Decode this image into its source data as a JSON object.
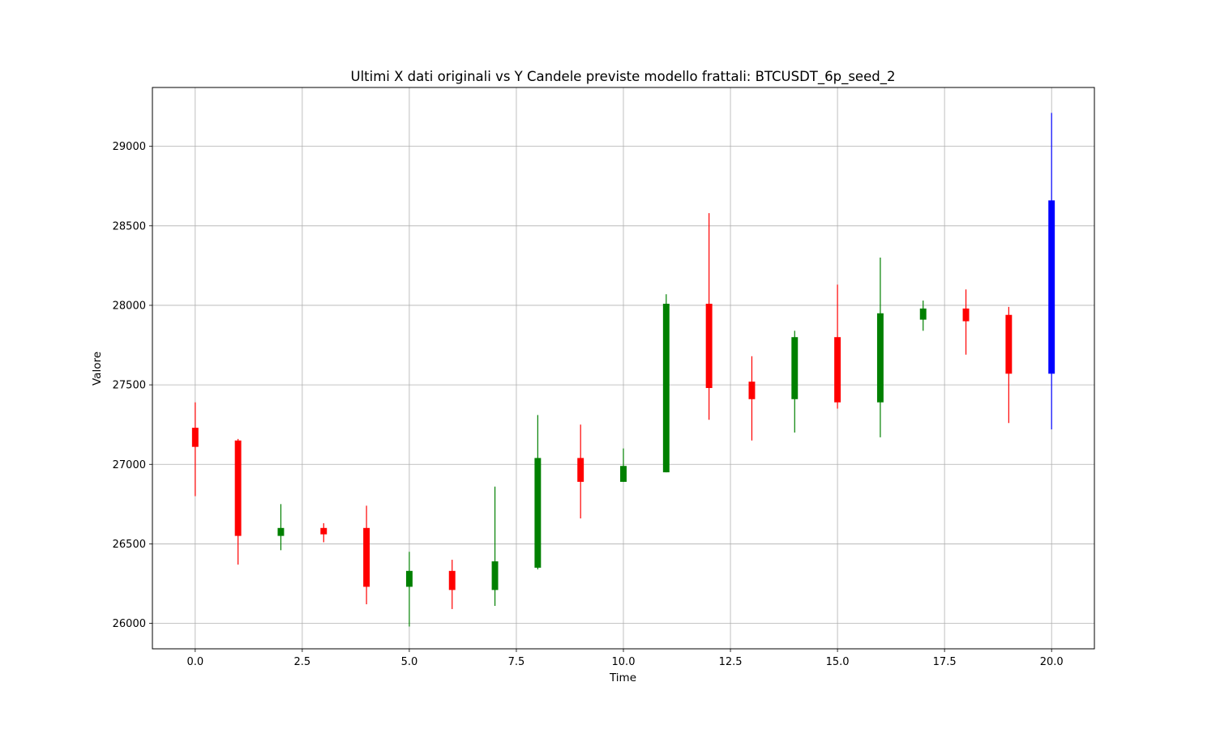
{
  "chart_data": {
    "type": "candlestick",
    "title": "Ultimi X dati originali vs Y Candele previste modello frattali: BTCUSDT_6p_seed_2",
    "xlabel": "Time",
    "ylabel": "Valore",
    "xlim": [
      -1.0,
      21.0
    ],
    "ylim": [
      25840,
      29370
    ],
    "xticks": [
      0.0,
      2.5,
      5.0,
      7.5,
      10.0,
      12.5,
      15.0,
      17.5,
      20.0
    ],
    "xtick_labels": [
      "0.0",
      "2.5",
      "5.0",
      "7.5",
      "10.0",
      "12.5",
      "15.0",
      "17.5",
      "20.0"
    ],
    "yticks": [
      26000,
      26500,
      27000,
      27500,
      28000,
      28500,
      29000
    ],
    "ytick_labels": [
      "26000",
      "26500",
      "27000",
      "27500",
      "28000",
      "28500",
      "29000"
    ],
    "grid": true,
    "colors": {
      "up": "#008000",
      "down": "#ff0000",
      "predicted": "#0000ff"
    },
    "candles": [
      {
        "t": 0,
        "open": 27230,
        "close": 27110,
        "high": 27390,
        "low": 26800,
        "kind": "down"
      },
      {
        "t": 1,
        "open": 27150,
        "close": 26550,
        "high": 27160,
        "low": 26370,
        "kind": "down"
      },
      {
        "t": 2,
        "open": 26550,
        "close": 26600,
        "high": 26750,
        "low": 26460,
        "kind": "up"
      },
      {
        "t": 3,
        "open": 26600,
        "close": 26560,
        "high": 26630,
        "low": 26510,
        "kind": "down"
      },
      {
        "t": 4,
        "open": 26600,
        "close": 26230,
        "high": 26740,
        "low": 26120,
        "kind": "down"
      },
      {
        "t": 5,
        "open": 26230,
        "close": 26330,
        "high": 26450,
        "low": 25980,
        "kind": "up"
      },
      {
        "t": 6,
        "open": 26330,
        "close": 26210,
        "high": 26400,
        "low": 26090,
        "kind": "down"
      },
      {
        "t": 7,
        "open": 26210,
        "close": 26390,
        "high": 26860,
        "low": 26110,
        "kind": "up"
      },
      {
        "t": 8,
        "open": 26350,
        "close": 27040,
        "high": 27310,
        "low": 26340,
        "kind": "up"
      },
      {
        "t": 9,
        "open": 27040,
        "close": 26890,
        "high": 27250,
        "low": 26660,
        "kind": "down"
      },
      {
        "t": 10,
        "open": 26890,
        "close": 26990,
        "high": 27100,
        "low": 26890,
        "kind": "up"
      },
      {
        "t": 11,
        "open": 26950,
        "close": 28010,
        "high": 28070,
        "low": 26950,
        "kind": "up"
      },
      {
        "t": 12,
        "open": 28010,
        "close": 27480,
        "high": 28580,
        "low": 27280,
        "kind": "down"
      },
      {
        "t": 13,
        "open": 27520,
        "close": 27410,
        "high": 27680,
        "low": 27150,
        "kind": "down"
      },
      {
        "t": 14,
        "open": 27410,
        "close": 27800,
        "high": 27840,
        "low": 27200,
        "kind": "up"
      },
      {
        "t": 15,
        "open": 27800,
        "close": 27390,
        "high": 28130,
        "low": 27350,
        "kind": "down"
      },
      {
        "t": 16,
        "open": 27390,
        "close": 27950,
        "high": 28300,
        "low": 27170,
        "kind": "up"
      },
      {
        "t": 17,
        "open": 27910,
        "close": 27980,
        "high": 28030,
        "low": 27840,
        "kind": "up"
      },
      {
        "t": 18,
        "open": 27980,
        "close": 27900,
        "high": 28100,
        "low": 27690,
        "kind": "down"
      },
      {
        "t": 19,
        "open": 27940,
        "close": 27570,
        "high": 27990,
        "low": 27260,
        "kind": "down"
      },
      {
        "t": 20,
        "open": 27570,
        "close": 28660,
        "high": 29210,
        "low": 27220,
        "kind": "predicted"
      }
    ]
  }
}
